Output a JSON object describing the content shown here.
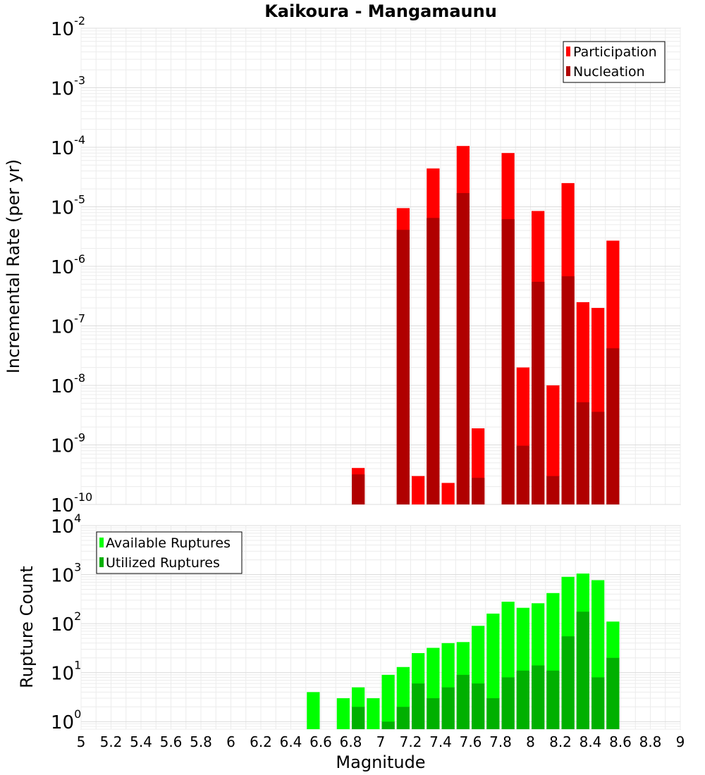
{
  "chart_data": [
    {
      "type": "bar",
      "title": "Kaikoura - Mangamaunu",
      "xlabel": "",
      "ylabel": "Incremental Rate (per yr)",
      "yscale": "log",
      "ylim": [
        1e-10,
        0.01
      ],
      "xlim": [
        5,
        9
      ],
      "bar_width": 0.1,
      "grid": true,
      "legend_position": "top-right",
      "y_tick_labels": [
        {
          "base": "10",
          "exp": "-10"
        },
        {
          "base": "10",
          "exp": "-9"
        },
        {
          "base": "10",
          "exp": "-8"
        },
        {
          "base": "10",
          "exp": "-7"
        },
        {
          "base": "10",
          "exp": "-6"
        },
        {
          "base": "10",
          "exp": "-5"
        },
        {
          "base": "10",
          "exp": "-4"
        },
        {
          "base": "10",
          "exp": "-3"
        },
        {
          "base": "10",
          "exp": "-2"
        }
      ],
      "series": [
        {
          "name": "Participation",
          "color": "#ff0000",
          "points": [
            [
              6.85,
              4.1e-10
            ],
            [
              7.15,
              9.5e-06
            ],
            [
              7.25,
              3e-10
            ],
            [
              7.35,
              4.4e-05
            ],
            [
              7.45,
              2.3e-10
            ],
            [
              7.55,
              0.000105
            ],
            [
              7.65,
              1.9e-09
            ],
            [
              7.85,
              8e-05
            ],
            [
              7.95,
              2e-08
            ],
            [
              8.05,
              8.5e-06
            ],
            [
              8.15,
              1e-08
            ],
            [
              8.25,
              2.5e-05
            ],
            [
              8.35,
              2.5e-07
            ],
            [
              8.45,
              2e-07
            ],
            [
              8.55,
              2.7e-06
            ]
          ]
        },
        {
          "name": "Nucleation",
          "color": "#b00000",
          "points": [
            [
              6.85,
              3.2e-10
            ],
            [
              7.15,
              4.1e-06
            ],
            [
              7.35,
              6.5e-06
            ],
            [
              7.55,
              1.7e-05
            ],
            [
              7.65,
              2.8e-10
            ],
            [
              7.85,
              6.2e-06
            ],
            [
              7.95,
              9.7e-10
            ],
            [
              8.05,
              5.5e-07
            ],
            [
              8.15,
              3e-10
            ],
            [
              8.25,
              6.8e-07
            ],
            [
              8.35,
              5.2e-09
            ],
            [
              8.45,
              3.6e-09
            ],
            [
              8.55,
              4.2e-08
            ]
          ]
        }
      ]
    },
    {
      "type": "bar",
      "title": "",
      "xlabel": "Magnitude",
      "ylabel": "Rupture Count",
      "yscale": "log",
      "ylim": [
        0.7,
        10000
      ],
      "xlim": [
        5,
        9
      ],
      "bar_width": 0.1,
      "grid": true,
      "legend_position": "top-left",
      "x_tick_labels": [
        "5",
        "5.2",
        "5.4",
        "5.6",
        "5.8",
        "6",
        "6.2",
        "6.4",
        "6.6",
        "6.8",
        "7",
        "7.2",
        "7.4",
        "7.6",
        "7.8",
        "8",
        "8.2",
        "8.4",
        "8.6",
        "8.8",
        "9"
      ],
      "y_tick_labels": [
        {
          "base": "10",
          "exp": "0"
        },
        {
          "base": "10",
          "exp": "1"
        },
        {
          "base": "10",
          "exp": "2"
        },
        {
          "base": "10",
          "exp": "3"
        },
        {
          "base": "10",
          "exp": "4"
        }
      ],
      "series": [
        {
          "name": "Available Ruptures",
          "color": "#00ff00",
          "points": [
            [
              6.55,
              4
            ],
            [
              6.75,
              3
            ],
            [
              6.85,
              5
            ],
            [
              6.95,
              3
            ],
            [
              7.05,
              9
            ],
            [
              7.15,
              13
            ],
            [
              7.25,
              25
            ],
            [
              7.35,
              32
            ],
            [
              7.45,
              40
            ],
            [
              7.55,
              42
            ],
            [
              7.65,
              90
            ],
            [
              7.75,
              160
            ],
            [
              7.85,
              280
            ],
            [
              7.95,
              210
            ],
            [
              8.05,
              260
            ],
            [
              8.15,
              420
            ],
            [
              8.25,
              900
            ],
            [
              8.35,
              1050
            ],
            [
              8.45,
              770
            ],
            [
              8.55,
              110
            ]
          ]
        },
        {
          "name": "Utilized Ruptures",
          "color": "#00b000",
          "points": [
            [
              6.85,
              2
            ],
            [
              7.05,
              1
            ],
            [
              7.15,
              2
            ],
            [
              7.25,
              6
            ],
            [
              7.35,
              3
            ],
            [
              7.45,
              5
            ],
            [
              7.55,
              9
            ],
            [
              7.65,
              6
            ],
            [
              7.75,
              3
            ],
            [
              7.85,
              8
            ],
            [
              7.95,
              11
            ],
            [
              8.05,
              14
            ],
            [
              8.15,
              11
            ],
            [
              8.25,
              55
            ],
            [
              8.35,
              175
            ],
            [
              8.45,
              8
            ],
            [
              8.55,
              20
            ]
          ]
        }
      ]
    }
  ]
}
